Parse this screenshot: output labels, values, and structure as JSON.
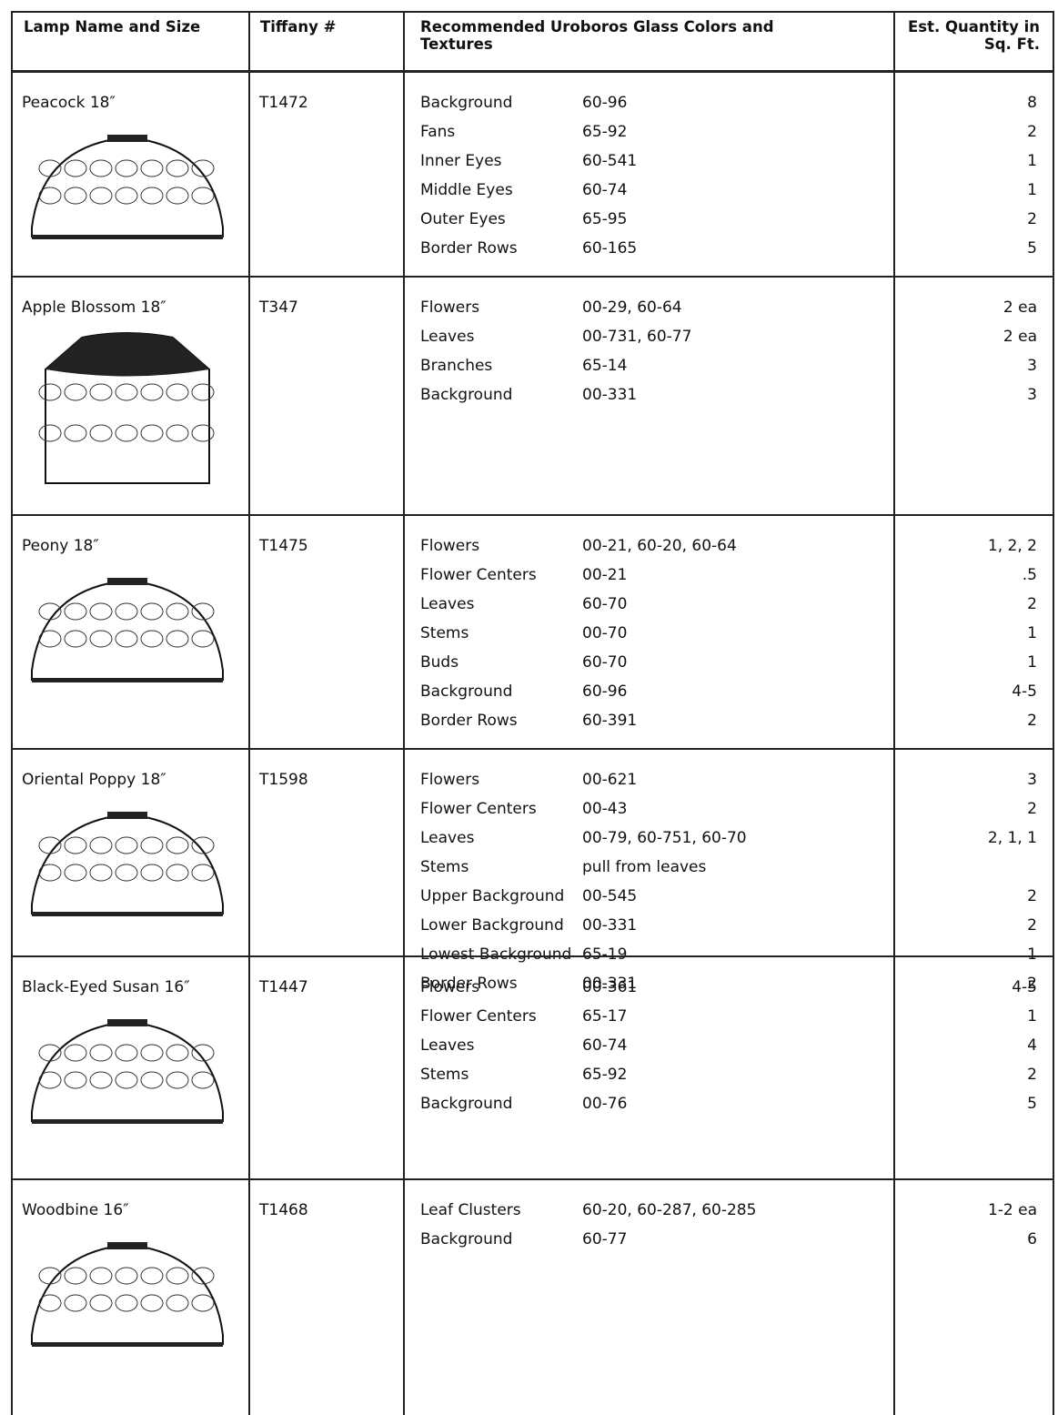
{
  "header": {
    "columns": [
      "Lamp Name and Size",
      "Tiffany #",
      "Recommended Uroboros Glass Colors and Textures",
      "Est. Quantity in Sq. Ft."
    ]
  },
  "table": {
    "rows": [
      {
        "name": "Peacock 18″",
        "tiffany": "T1472",
        "glass": [
          {
            "part": "Background",
            "code": "60-96",
            "qty": "8"
          },
          {
            "part": "Fans",
            "code": "65-92",
            "qty": "2"
          },
          {
            "part": "Inner Eyes",
            "code": "60-541",
            "qty": "1"
          },
          {
            "part": "Middle Eyes",
            "code": "60-74",
            "qty": "1"
          },
          {
            "part": "Outer Eyes",
            "code": "65-95",
            "qty": "2"
          },
          {
            "part": "Border Rows",
            "code": "60-165",
            "qty": "5"
          }
        ]
      },
      {
        "name": "Apple Blossom 18″",
        "tiffany": "T347",
        "glass": [
          {
            "part": "Flowers",
            "code": "00-29, 60-64",
            "qty": "2 ea"
          },
          {
            "part": "Leaves",
            "code": "00-731, 60-77",
            "qty": "2 ea"
          },
          {
            "part": "Branches",
            "code": "65-14",
            "qty": "3"
          },
          {
            "part": "Background",
            "code": "00-331",
            "qty": "3"
          }
        ]
      },
      {
        "name": "Peony 18″",
        "tiffany": "T1475",
        "glass": [
          {
            "part": "Flowers",
            "code": "00-21, 60-20, 60-64",
            "qty": "1, 2, 2"
          },
          {
            "part": "Flower Centers",
            "code": "00-21",
            "qty": ".5"
          },
          {
            "part": "Leaves",
            "code": "60-70",
            "qty": "2"
          },
          {
            "part": "Stems",
            "code": "00-70",
            "qty": "1"
          },
          {
            "part": "Buds",
            "code": "60-70",
            "qty": "1"
          },
          {
            "part": "Background",
            "code": "60-96",
            "qty": "4-5"
          },
          {
            "part": "Border Rows",
            "code": "60-391",
            "qty": "2"
          }
        ]
      },
      {
        "name": "Oriental Poppy 18″",
        "tiffany": "T1598",
        "glass": [
          {
            "part": "Flowers",
            "code": "00-621",
            "qty": "3"
          },
          {
            "part": "Flower Centers",
            "code": "00-43",
            "qty": "2"
          },
          {
            "part": "Leaves",
            "code": "00-79, 60-751, 60-70",
            "qty": "2, 1, 1"
          },
          {
            "part": "Stems",
            "code": "pull from leaves",
            "qty": null
          },
          {
            "part": "Upper Background",
            "code": "00-545",
            "qty": "2"
          },
          {
            "part": "Lower Background",
            "code": "00-331",
            "qty": "2"
          },
          {
            "part": "Lowest Background",
            "code": "65-19",
            "qty": "1"
          },
          {
            "part": "Border Rows",
            "code": "00-331",
            "qty": "2"
          }
        ]
      },
      {
        "name": "Black-Eyed Susan 16″",
        "tiffany": "T1447",
        "glass": [
          {
            "part": "Flowers",
            "code": "00-361",
            "qty": "4-5"
          },
          {
            "part": "Flower Centers",
            "code": "65-17",
            "qty": "1"
          },
          {
            "part": "Leaves",
            "code": "60-74",
            "qty": "4"
          },
          {
            "part": "Stems",
            "code": "65-92",
            "qty": "2"
          },
          {
            "part": "Background",
            "code": "00-76",
            "qty": "5"
          }
        ]
      },
      {
        "name": "Woodbine 16″",
        "tiffany": "T1468",
        "glass": [
          {
            "part": "Leaf Clusters",
            "code": "60-20, 60-287, 60-285",
            "qty": "1-2 ea"
          },
          {
            "part": "Background",
            "code": "60-77",
            "qty": "6"
          }
        ]
      }
    ]
  }
}
